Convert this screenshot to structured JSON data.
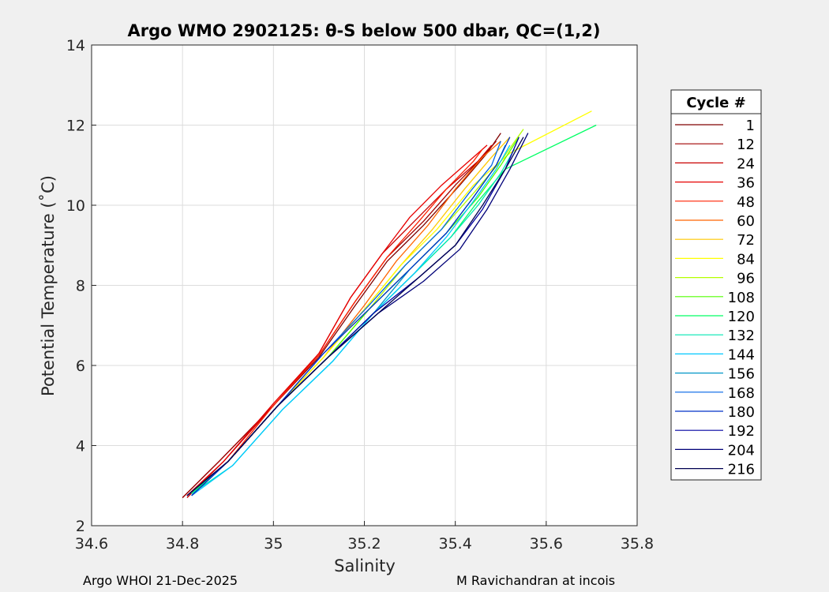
{
  "chart_data": {
    "type": "line",
    "title": "Argo WMO 2902125: θ-S below 500 dbar,  QC=(1,2)",
    "xlabel": "Salinity",
    "ylabel": "Potential Temperature (˚C)",
    "xlim": [
      34.6,
      35.8
    ],
    "ylim": [
      2,
      14
    ],
    "xticks": [
      "34.6",
      "34.8",
      "35",
      "35.2",
      "35.4",
      "35.6",
      "35.8"
    ],
    "yticks": [
      "2",
      "4",
      "6",
      "8",
      "10",
      "12",
      "14"
    ],
    "grid": true,
    "legend_title": "Cycle #",
    "legend_position": "right",
    "series": [
      {
        "name": "1",
        "color": "#800000",
        "x": [
          34.8,
          34.88,
          35.0,
          35.1,
          35.18,
          35.25,
          35.33,
          35.41,
          35.47,
          35.5
        ],
        "y": [
          2.7,
          3.6,
          5.0,
          6.2,
          7.5,
          8.6,
          9.5,
          10.5,
          11.3,
          11.8
        ]
      },
      {
        "name": "12",
        "color": "#a00000",
        "x": [
          34.8,
          34.88,
          35.0,
          35.1,
          35.18,
          35.25,
          35.33,
          35.4,
          35.46,
          35.49
        ],
        "y": [
          2.7,
          3.6,
          5.0,
          6.25,
          7.6,
          8.7,
          9.6,
          10.5,
          11.2,
          11.6
        ]
      },
      {
        "name": "24",
        "color": "#c80000",
        "x": [
          34.81,
          34.89,
          35.0,
          35.1,
          35.17,
          35.24,
          35.31,
          35.38,
          35.45,
          35.48
        ],
        "y": [
          2.7,
          3.6,
          5.0,
          6.3,
          7.7,
          8.8,
          9.6,
          10.4,
          11.1,
          11.5
        ]
      },
      {
        "name": "36",
        "color": "#e60000",
        "x": [
          34.81,
          34.89,
          35.0,
          35.1,
          35.17,
          35.24,
          35.3,
          35.37,
          35.44,
          35.47
        ],
        "y": [
          2.75,
          3.6,
          5.05,
          6.3,
          7.7,
          8.8,
          9.7,
          10.5,
          11.2,
          11.5
        ]
      },
      {
        "name": "48",
        "color": "#ff2000",
        "x": [
          34.82,
          34.9,
          35.0,
          35.1,
          35.18,
          35.25,
          35.32,
          35.38,
          35.44,
          35.46
        ],
        "y": [
          2.8,
          3.6,
          5.0,
          6.25,
          7.6,
          8.7,
          9.6,
          10.4,
          11.1,
          11.4
        ]
      },
      {
        "name": "60",
        "color": "#ff6400",
        "x": [
          34.82,
          34.9,
          35.01,
          35.11,
          35.2,
          35.27,
          35.34,
          35.4,
          35.46,
          35.5
        ],
        "y": [
          2.8,
          3.6,
          5.0,
          6.2,
          7.5,
          8.6,
          9.5,
          10.4,
          11.2,
          11.6
        ]
      },
      {
        "name": "72",
        "color": "#ffc800",
        "x": [
          34.82,
          34.9,
          35.01,
          35.11,
          35.2,
          35.28,
          35.35,
          35.42,
          35.48,
          35.52
        ],
        "y": [
          2.8,
          3.6,
          5.0,
          6.2,
          7.4,
          8.5,
          9.4,
          10.4,
          11.2,
          11.7
        ]
      },
      {
        "name": "84",
        "color": "#ffff00",
        "x": [
          34.82,
          34.9,
          35.01,
          35.11,
          35.2,
          35.28,
          35.36,
          35.44,
          35.52,
          35.7
        ],
        "y": [
          2.8,
          3.6,
          5.0,
          6.2,
          7.4,
          8.5,
          9.4,
          10.5,
          11.3,
          12.35
        ]
      },
      {
        "name": "96",
        "color": "#b4ff00",
        "x": [
          34.82,
          34.9,
          35.01,
          35.12,
          35.21,
          35.29,
          35.37,
          35.44,
          35.5,
          35.55
        ],
        "y": [
          2.8,
          3.6,
          5.0,
          6.2,
          7.4,
          8.5,
          9.4,
          10.3,
          11.1,
          11.9
        ]
      },
      {
        "name": "108",
        "color": "#50ff00",
        "x": [
          34.82,
          34.9,
          35.01,
          35.12,
          35.21,
          35.3,
          35.38,
          35.45,
          35.5,
          35.54
        ],
        "y": [
          2.8,
          3.6,
          5.0,
          6.2,
          7.4,
          8.4,
          9.3,
          10.2,
          11.0,
          11.7
        ]
      },
      {
        "name": "120",
        "color": "#00ff64",
        "x": [
          34.82,
          34.9,
          35.01,
          35.12,
          35.22,
          35.31,
          35.39,
          35.45,
          35.51,
          35.71
        ],
        "y": [
          2.8,
          3.6,
          5.0,
          6.2,
          7.3,
          8.3,
          9.2,
          10.1,
          10.9,
          12.0
        ]
      },
      {
        "name": "132",
        "color": "#00e6b4",
        "x": [
          34.82,
          34.91,
          35.02,
          35.13,
          35.22,
          35.31,
          35.39,
          35.45,
          35.5,
          35.53
        ],
        "y": [
          2.8,
          3.5,
          4.9,
          6.1,
          7.3,
          8.3,
          9.2,
          10.0,
          10.8,
          11.4
        ]
      },
      {
        "name": "144",
        "color": "#00c8ff",
        "x": [
          34.82,
          34.91,
          35.02,
          35.13,
          35.22,
          35.31,
          35.38,
          35.44,
          35.49,
          35.52
        ],
        "y": [
          2.75,
          3.5,
          4.9,
          6.1,
          7.3,
          8.3,
          9.2,
          10.1,
          10.9,
          11.5
        ]
      },
      {
        "name": "156",
        "color": "#0096c8",
        "x": [
          34.82,
          34.9,
          35.01,
          35.12,
          35.22,
          35.3,
          35.38,
          35.44,
          35.49,
          35.51
        ],
        "y": [
          2.75,
          3.6,
          5.0,
          6.2,
          7.3,
          8.4,
          9.3,
          10.2,
          11.0,
          11.5
        ]
      },
      {
        "name": "168",
        "color": "#0064e6",
        "x": [
          34.82,
          34.9,
          35.01,
          35.11,
          35.21,
          35.29,
          35.37,
          35.43,
          35.48,
          35.5
        ],
        "y": [
          2.75,
          3.6,
          5.0,
          6.3,
          7.5,
          8.5,
          9.4,
          10.3,
          11.0,
          11.6
        ]
      },
      {
        "name": "180",
        "color": "#0032c8",
        "x": [
          34.82,
          34.9,
          35.01,
          35.11,
          35.21,
          35.3,
          35.38,
          35.44,
          35.49,
          35.52
        ],
        "y": [
          2.75,
          3.6,
          5.0,
          6.3,
          7.4,
          8.4,
          9.3,
          10.2,
          11.0,
          11.7
        ]
      },
      {
        "name": "192",
        "color": "#0000a0",
        "x": [
          34.81,
          34.9,
          35.01,
          35.12,
          35.22,
          35.32,
          35.4,
          35.46,
          35.51,
          35.54
        ],
        "y": [
          2.75,
          3.6,
          5.0,
          6.2,
          7.3,
          8.2,
          9.0,
          9.9,
          10.9,
          11.7
        ]
      },
      {
        "name": "204",
        "color": "#000078",
        "x": [
          34.81,
          34.9,
          35.01,
          35.12,
          35.23,
          35.33,
          35.41,
          35.47,
          35.52,
          35.56
        ],
        "y": [
          2.75,
          3.6,
          5.0,
          6.2,
          7.3,
          8.1,
          8.9,
          9.9,
          10.9,
          11.8
        ]
      },
      {
        "name": "216",
        "color": "#000050",
        "x": [
          34.81,
          34.9,
          35.01,
          35.12,
          35.23,
          35.32,
          35.4,
          35.46,
          35.51,
          35.55
        ],
        "y": [
          2.75,
          3.6,
          5.0,
          6.2,
          7.3,
          8.2,
          9.0,
          10.0,
          10.9,
          11.7
        ]
      }
    ]
  },
  "footer": {
    "left": "Argo WHOI 21-Dec-2025",
    "right": "M Ravichandran at incois"
  }
}
